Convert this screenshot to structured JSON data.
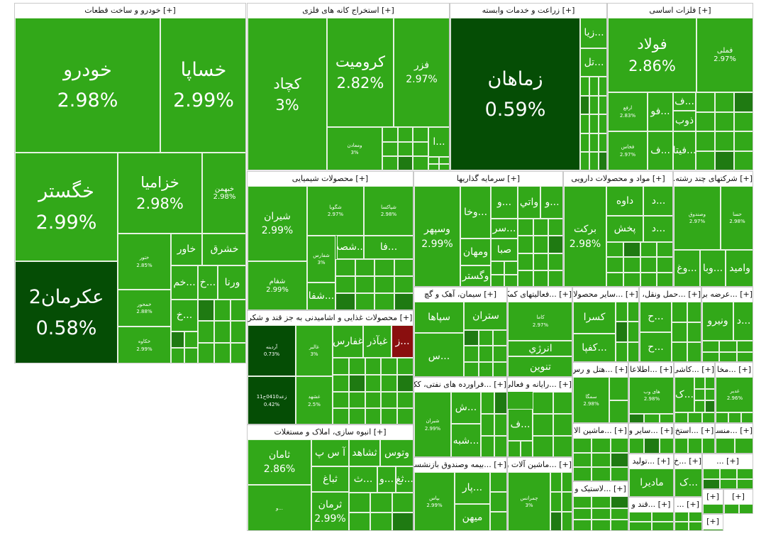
{
  "colors": {
    "up": "#32a819",
    "down_dark": "#054d05",
    "down_mid": "#1f7a12",
    "neg": "#8a0f0f",
    "gold": "#d6b400"
  },
  "chart_data": {
    "type": "treemap",
    "title": "",
    "sectors": [
      {
        "name": "[+] خودرو و ساخت قطعات",
        "tiles": [
          {
            "name": "خودرو",
            "pct": "2.98%"
          },
          {
            "name": "خساپا",
            "pct": "2.99%"
          },
          {
            "name": "خگستر",
            "pct": "2.99%"
          },
          {
            "name": "خزامیا",
            "pct": "2.98%"
          },
          {
            "name": "خبهمن",
            "pct": "2.98%"
          },
          {
            "name": "عکرمان2",
            "pct": "0.58%"
          },
          {
            "name": "ختور",
            "pct": "2.85%"
          },
          {
            "name": "خاور",
            "pct": ""
          },
          {
            "name": "خشرق",
            "pct": ""
          },
          {
            "name": "خمحور",
            "pct": "2.88%"
          },
          {
            "name": "...خم",
            "pct": ""
          },
          {
            "name": "...خ",
            "pct": ""
          },
          {
            "name": "ورنا",
            "pct": ""
          },
          {
            "name": "خکاوه",
            "pct": "2.99%"
          },
          {
            "name": "...خ",
            "pct": ""
          }
        ]
      },
      {
        "name": "[+] استخراج کانه های فلزی",
        "tiles": [
          {
            "name": "کچاد",
            "pct": "3%"
          },
          {
            "name": "کرومیت",
            "pct": "2.82%"
          },
          {
            "name": "فزر",
            "pct": "2.97%"
          },
          {
            "name": "ومعادن",
            "pct": "3%"
          },
          {
            "name": "...ا",
            "pct": ""
          }
        ]
      },
      {
        "name": "[+] زراعت و خدمات وابسته",
        "tiles": [
          {
            "name": "زماهان",
            "pct": "0.59%"
          },
          {
            "name": "...زیا",
            "pct": ""
          },
          {
            "name": "...تل",
            "pct": ""
          }
        ]
      },
      {
        "name": "[+] فلزات اساسی",
        "tiles": [
          {
            "name": "فولاد",
            "pct": "2.86%"
          },
          {
            "name": "فملی",
            "pct": "2.97%"
          },
          {
            "name": "ارفع",
            "pct": "2.83%"
          },
          {
            "name": "...فو",
            "pct": ""
          },
          {
            "name": "...ف",
            "pct": ""
          },
          {
            "name": "فخاس",
            "pct": "2.97%"
          },
          {
            "name": "...ف",
            "pct": ""
          },
          {
            "name": "ذوب",
            "pct": ""
          },
          {
            "name": "...فیتا",
            "pct": ""
          }
        ]
      },
      {
        "name": "[+] محصولات شیمیایی",
        "tiles": [
          {
            "name": "شیران",
            "pct": "2.99%"
          },
          {
            "name": "شگویا",
            "pct": "2.97%"
          },
          {
            "name": "شپاکسا",
            "pct": "2.98%"
          },
          {
            "name": "...فا",
            "pct": ""
          },
          {
            "name": "...شصد",
            "pct": ""
          },
          {
            "name": "شفارس",
            "pct": "3%"
          },
          {
            "name": "شفام",
            "pct": "2.99%"
          },
          {
            "name": "...شفا",
            "pct": ""
          }
        ]
      },
      {
        "name": "[+] سرمایه گذاریها",
        "tiles": [
          {
            "name": "وسپهر",
            "pct": "2.99%"
          },
          {
            "name": "...وخا",
            "pct": ""
          },
          {
            "name": "...و",
            "pct": ""
          },
          {
            "name": "واتي",
            "pct": ""
          },
          {
            "name": "...و",
            "pct": ""
          },
          {
            "name": "...سر",
            "pct": ""
          },
          {
            "name": "ومهان",
            "pct": ""
          },
          {
            "name": "صبا",
            "pct": ""
          },
          {
            "name": "وگستر",
            "pct": ""
          }
        ]
      },
      {
        "name": "[+] مواد و محصولات دارویی",
        "tiles": [
          {
            "name": "برکت",
            "pct": "2.98%"
          },
          {
            "name": "داوه",
            "pct": ""
          },
          {
            "name": "...د",
            "pct": ""
          },
          {
            "name": "پخش",
            "pct": ""
          },
          {
            "name": "...د",
            "pct": ""
          }
        ]
      },
      {
        "name": "[+] شرکتهای چند رشته...",
        "tiles": [
          {
            "name": "وصندوق",
            "pct": "2.97%"
          },
          {
            "name": "حسا",
            "pct": "2.98%"
          },
          {
            "name": "...وغ",
            "pct": ""
          },
          {
            "name": "...وبا",
            "pct": ""
          },
          {
            "name": "وامید",
            "pct": ""
          }
        ]
      },
      {
        "name": "[+] محصولات غذایی و اشامیدنی به جز قند و شکر",
        "tiles": [
          {
            "name": "آردینه",
            "pct": "0.73%"
          },
          {
            "name": "غالبر",
            "pct": "3%"
          },
          {
            "name": "غفارس",
            "pct": ""
          },
          {
            "name": "غبآذر",
            "pct": ""
          },
          {
            "name": "...ز",
            "pct": ""
          },
          {
            "name": "زعد0410ح11",
            "pct": "0.42%"
          },
          {
            "name": "غشهد",
            "pct": "2.5%"
          }
        ]
      },
      {
        "name": "[+] سیمان، آهک و گچ",
        "tiles": [
          {
            "name": "سپاها",
            "pct": ""
          },
          {
            "name": "...س",
            "pct": ""
          },
          {
            "name": "ستران",
            "pct": ""
          }
        ]
      },
      {
        "name": "[+] ...فعالیتهای کمک",
        "tiles": [
          {
            "name": "کاما",
            "pct": "2.97%"
          },
          {
            "name": "انرژي",
            "pct": ""
          },
          {
            "name": "تنوین",
            "pct": ""
          }
        ]
      },
      {
        "name": "[+] ...سایر محصولا",
        "tiles": [
          {
            "name": "کسرا",
            "pct": ""
          },
          {
            "name": "...کفپا",
            "pct": ""
          }
        ]
      },
      {
        "name": "[+] ...حمل ونقل، ا",
        "tiles": [
          {
            "name": "...ح",
            "pct": ""
          },
          {
            "name": "...ح",
            "pct": ""
          }
        ]
      },
      {
        "name": "[+] ...عرضه بر",
        "tiles": [
          {
            "name": "ونیرو",
            "pct": ""
          },
          {
            "name": "...د",
            "pct": ""
          }
        ]
      },
      {
        "name": "[+] انبوه سازی، املاک و مستغلات",
        "tiles": [
          {
            "name": "ثامان",
            "pct": "2.86%"
          },
          {
            "name": "آ س پ",
            "pct": ""
          },
          {
            "name": "ثشاهد",
            "pct": ""
          },
          {
            "name": "وتوس",
            "pct": ""
          },
          {
            "name": "ثباغ",
            "pct": ""
          },
          {
            "name": "...ث",
            "pct": ""
          },
          {
            "name": "...و",
            "pct": ""
          },
          {
            "name": "...ثغ",
            "pct": ""
          },
          {
            "name": "...و",
            "pct": ""
          },
          {
            "name": "ثرمان",
            "pct": "2.99%"
          },
          {
            "name": "ثشرق",
            "pct": ""
          }
        ]
      },
      {
        "name": "[+] ...فراورده های نفتی، کک و",
        "tiles": [
          {
            "name": "شبران",
            "pct": "2.99%"
          },
          {
            "name": "...ش",
            "pct": ""
          },
          {
            "name": "...شبه",
            "pct": ""
          }
        ]
      },
      {
        "name": "[+] ...رایانه و فعالی",
        "tiles": [
          {
            "name": "...ف",
            "pct": ""
          }
        ]
      },
      {
        "name": "[+] ...هتل و رس",
        "tiles": [
          {
            "name": "سمگا",
            "pct": "2.98%"
          }
        ]
      },
      {
        "name": "[+] ...اطلاعا",
        "tiles": [
          {
            "name": "های وب",
            "pct": "2.98%"
          }
        ]
      },
      {
        "name": "[+] ...کاشی",
        "tiles": [
          {
            "name": "...ک",
            "pct": ""
          }
        ]
      },
      {
        "name": "[+] ...مخا",
        "tiles": [
          {
            "name": "غدیر",
            "pct": "2.96%"
          }
        ]
      },
      {
        "name": "[+] ...بیمه وصندوق بازنشستگ",
        "tiles": [
          {
            "name": "بپاس",
            "pct": "2.99%"
          },
          {
            "name": "...پار",
            "pct": ""
          },
          {
            "name": "میهن",
            "pct": ""
          }
        ]
      },
      {
        "name": "[+] ...ماشین آلات و",
        "tiles": [
          {
            "name": "چمرانس",
            "pct": "3%"
          }
        ]
      },
      {
        "name": "[+] ...ماشین الا",
        "tiles": []
      },
      {
        "name": "[+] ...سایر و",
        "tiles": []
      },
      {
        "name": "[+] ...استخ",
        "tiles": []
      },
      {
        "name": "[+] ...منسو",
        "tiles": []
      },
      {
        "name": "[+] ...تولید",
        "tiles": [
          {
            "name": "مادیرا",
            "pct": ""
          }
        ]
      },
      {
        "name": "[+] ...خ",
        "tiles": [
          {
            "name": "...ک",
            "pct": ""
          }
        ]
      },
      {
        "name": "[+] ...",
        "tiles": []
      },
      {
        "name": "[+] ...لاستیک و",
        "tiles": []
      },
      {
        "name": "[+] ...قند و",
        "tiles": []
      },
      {
        "name": "[+] ...",
        "tiles": []
      },
      {
        "name": "[+]",
        "tiles": []
      },
      {
        "name": "[+]",
        "tiles": []
      },
      {
        "name": "[+]",
        "tiles": []
      }
    ]
  }
}
